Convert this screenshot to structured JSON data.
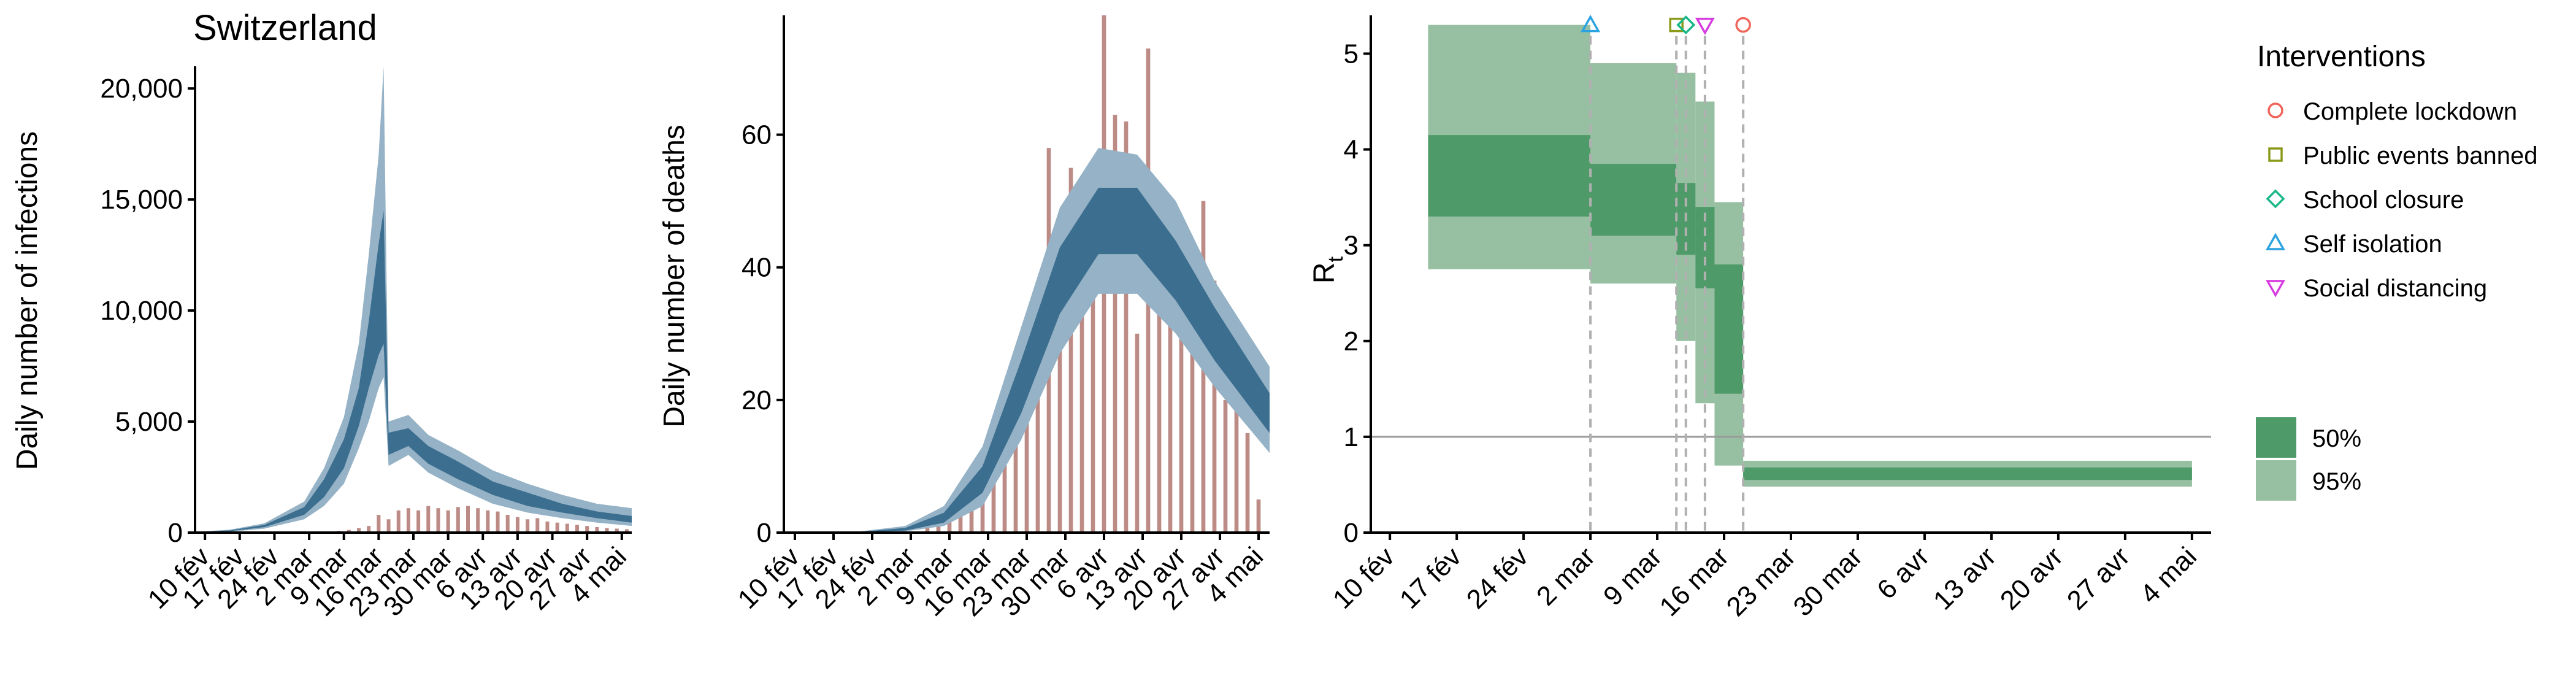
{
  "title": "Switzerland",
  "colors": {
    "model_dark": "#3c6e8f",
    "model_light": "#95b2c6",
    "observed": "#b8857f",
    "rt_50": "#4e9a68",
    "rt_95": "#97c0a2",
    "reference_line": "#9a9a9a",
    "intervention_line": "#b0b0b0"
  },
  "chart_data": [
    {
      "type": "bar",
      "ylabel": "Daily number of infections",
      "ylim": [
        0,
        21000
      ],
      "yticks": [
        0,
        5000,
        10000,
        15000,
        20000
      ],
      "yticklabels": [
        "0",
        "5,000",
        "10,000",
        "15,000",
        "20,000"
      ],
      "xticklabels": [
        "10 fév",
        "17 fév",
        "24 fév",
        "2 mar",
        "9 mar",
        "16 mar",
        "23 mar",
        "30 mar",
        "6 avr",
        "13 avr",
        "20 avr",
        "27 avr",
        "4 mai"
      ],
      "x_start": "2020-02-08",
      "x_end": "2020-05-06",
      "series": [
        {
          "role": "observed cases",
          "x": [
            "2020-03-02",
            "2020-03-04",
            "2020-03-06",
            "2020-03-08",
            "2020-03-10",
            "2020-03-12",
            "2020-03-14",
            "2020-03-16",
            "2020-03-18",
            "2020-03-20",
            "2020-03-22",
            "2020-03-24",
            "2020-03-26",
            "2020-03-28",
            "2020-03-30",
            "2020-04-01",
            "2020-04-03",
            "2020-04-05",
            "2020-04-07",
            "2020-04-09",
            "2020-04-11",
            "2020-04-13",
            "2020-04-15",
            "2020-04-17",
            "2020-04-19",
            "2020-04-21",
            "2020-04-23",
            "2020-04-25",
            "2020-04-27",
            "2020-04-29",
            "2020-05-01",
            "2020-05-03",
            "2020-05-05"
          ],
          "values": [
            10,
            20,
            40,
            80,
            120,
            200,
            300,
            800,
            600,
            1000,
            1100,
            1000,
            1200,
            1100,
            1000,
            1150,
            1200,
            1100,
            1000,
            950,
            800,
            700,
            600,
            650,
            500,
            450,
            400,
            350,
            300,
            250,
            200,
            180,
            150
          ]
        },
        {
          "role": "estimated infections",
          "x": [
            "2020-02-08",
            "2020-02-15",
            "2020-02-22",
            "2020-03-01",
            "2020-03-05",
            "2020-03-09",
            "2020-03-12",
            "2020-03-14",
            "2020-03-16",
            "2020-03-17",
            "2020-03-18",
            "2020-03-22",
            "2020-03-26",
            "2020-04-01",
            "2020-04-08",
            "2020-04-15",
            "2020-04-22",
            "2020-04-29",
            "2020-05-06"
          ],
          "median": [
            20,
            80,
            300,
            1000,
            2000,
            3500,
            5500,
            7500,
            9500,
            11000,
            4000,
            4300,
            3500,
            2800,
            2000,
            1500,
            1100,
            800,
            600
          ],
          "lower_50": [
            15,
            60,
            250,
            800,
            1600,
            2900,
            4800,
            6500,
            8000,
            8500,
            3500,
            3900,
            3100,
            2400,
            1700,
            1200,
            900,
            650,
            450
          ],
          "upper_50": [
            25,
            100,
            350,
            1150,
            2400,
            4200,
            6500,
            9500,
            13000,
            14500,
            4500,
            4700,
            3900,
            3200,
            2300,
            1800,
            1300,
            950,
            750
          ],
          "lower_95": [
            10,
            40,
            180,
            600,
            1200,
            2200,
            3800,
            5000,
            6500,
            7000,
            3000,
            3500,
            2700,
            2000,
            1300,
            900,
            650,
            450,
            300
          ],
          "upper_95": [
            35,
            130,
            420,
            1400,
            2900,
            5200,
            8500,
            12500,
            17000,
            21000,
            5000,
            5300,
            4400,
            3700,
            2800,
            2200,
            1700,
            1300,
            1100
          ]
        }
      ]
    },
    {
      "type": "bar",
      "ylabel": "Daily number of deaths",
      "ylim": [
        0,
        78
      ],
      "yticks": [
        0,
        20,
        40,
        60
      ],
      "yticklabels": [
        "0",
        "20",
        "40",
        "60"
      ],
      "xticklabels": [
        "10 fév",
        "17 fév",
        "24 fév",
        "2 mar",
        "9 mar",
        "16 mar",
        "23 mar",
        "30 mar",
        "6 avr",
        "13 avr",
        "20 avr",
        "27 avr",
        "4 mai"
      ],
      "x_start": "2020-02-08",
      "x_end": "2020-05-06",
      "series": [
        {
          "role": "observed deaths",
          "x": [
            "2020-03-05",
            "2020-03-07",
            "2020-03-09",
            "2020-03-11",
            "2020-03-13",
            "2020-03-15",
            "2020-03-17",
            "2020-03-19",
            "2020-03-21",
            "2020-03-23",
            "2020-03-25",
            "2020-03-27",
            "2020-03-29",
            "2020-03-31",
            "2020-04-02",
            "2020-04-04",
            "2020-04-06",
            "2020-04-08",
            "2020-04-10",
            "2020-04-12",
            "2020-04-14",
            "2020-04-16",
            "2020-04-18",
            "2020-04-20",
            "2020-04-22",
            "2020-04-24",
            "2020-04-26",
            "2020-04-28",
            "2020-04-30",
            "2020-05-02",
            "2020-05-04"
          ],
          "values": [
            1,
            1,
            2,
            3,
            4,
            6,
            8,
            12,
            18,
            25,
            30,
            58,
            35,
            55,
            45,
            50,
            78,
            63,
            62,
            30,
            73,
            52,
            50,
            45,
            40,
            50,
            38,
            20,
            30,
            15,
            5
          ]
        },
        {
          "role": "estimated deaths",
          "x": [
            "2020-02-08",
            "2020-02-20",
            "2020-03-01",
            "2020-03-08",
            "2020-03-15",
            "2020-03-22",
            "2020-03-29",
            "2020-04-05",
            "2020-04-12",
            "2020-04-19",
            "2020-04-26",
            "2020-05-06"
          ],
          "median": [
            0,
            0,
            0.5,
            2,
            8,
            22,
            38,
            48,
            48,
            40,
            30,
            18
          ],
          "lower_50": [
            0,
            0,
            0.3,
            1.5,
            6,
            18,
            33,
            42,
            42,
            35,
            26,
            15
          ],
          "upper_50": [
            0,
            0,
            0.7,
            3,
            10,
            26,
            43,
            52,
            52,
            44,
            34,
            21
          ],
          "lower_95": [
            0,
            0,
            0.2,
            1,
            4,
            14,
            27,
            36,
            36,
            30,
            22,
            12
          ],
          "upper_95": [
            0,
            0,
            1,
            4,
            13,
            31,
            49,
            58,
            57,
            50,
            38,
            25
          ]
        }
      ]
    },
    {
      "type": "area",
      "ylabel": "R",
      "ylabel_sub": "t",
      "ylim": [
        0,
        5.4
      ],
      "yticks": [
        0,
        1,
        2,
        3,
        4,
        5
      ],
      "yticklabels": [
        "0",
        "1",
        "2",
        "3",
        "4",
        "5"
      ],
      "xticklabels": [
        "10 fév",
        "17 fév",
        "24 fév",
        "2 mar",
        "9 mar",
        "16 mar",
        "23 mar",
        "30 mar",
        "6 avr",
        "13 avr",
        "20 avr",
        "27 avr",
        "4 mai"
      ],
      "x_start": "2020-02-08",
      "x_end": "2020-05-06",
      "reference_line": 1,
      "steps": [
        {
          "from": "2020-02-14",
          "to": "2020-03-02",
          "lower_95": 2.75,
          "upper_95": 5.3,
          "lower_50": 3.3,
          "upper_50": 4.15
        },
        {
          "from": "2020-03-02",
          "to": "2020-03-11",
          "lower_95": 2.6,
          "upper_95": 4.9,
          "lower_50": 3.1,
          "upper_50": 3.85
        },
        {
          "from": "2020-03-11",
          "to": "2020-03-13",
          "lower_95": 2.0,
          "upper_95": 4.8,
          "lower_50": 2.9,
          "upper_50": 3.65
        },
        {
          "from": "2020-03-13",
          "to": "2020-03-15",
          "lower_95": 1.35,
          "upper_95": 4.5,
          "lower_50": 2.55,
          "upper_50": 3.4
        },
        {
          "from": "2020-03-15",
          "to": "2020-03-18",
          "lower_95": 0.7,
          "upper_95": 3.45,
          "lower_50": 1.45,
          "upper_50": 2.8
        },
        {
          "from": "2020-03-18",
          "to": "2020-05-04",
          "lower_95": 0.48,
          "upper_95": 0.75,
          "lower_50": 0.55,
          "upper_50": 0.68
        }
      ],
      "interventions": [
        {
          "name": "Self isolation",
          "date": "2020-03-02",
          "marker": "triangle-up",
          "color": "#2aa3e0"
        },
        {
          "name": "Public events banned",
          "date": "2020-03-11",
          "marker": "square",
          "color": "#8a9a1a"
        },
        {
          "name": "School closure",
          "date": "2020-03-12",
          "marker": "diamond",
          "color": "#1ab889"
        },
        {
          "name": "Social distancing",
          "date": "2020-03-14",
          "marker": "triangle-down",
          "color": "#d63ce0"
        },
        {
          "name": "Complete lockdown",
          "date": "2020-03-18",
          "marker": "circle",
          "color": "#f0655a"
        }
      ]
    }
  ],
  "legend": {
    "interventions_title": "Interventions",
    "interventions": [
      {
        "label": "Complete lockdown",
        "marker": "circle",
        "color": "#f0655a"
      },
      {
        "label": "Public events banned",
        "marker": "square",
        "color": "#8a9a1a"
      },
      {
        "label": "School closure",
        "marker": "diamond",
        "color": "#1ab889"
      },
      {
        "label": "Self isolation",
        "marker": "triangle-up",
        "color": "#2aa3e0"
      },
      {
        "label": "Social distancing",
        "marker": "triangle-down",
        "color": "#d63ce0"
      }
    ],
    "bands": [
      {
        "label": "50%",
        "color": "#4e9a68"
      },
      {
        "label": "95%",
        "color": "#97c0a2"
      }
    ]
  }
}
